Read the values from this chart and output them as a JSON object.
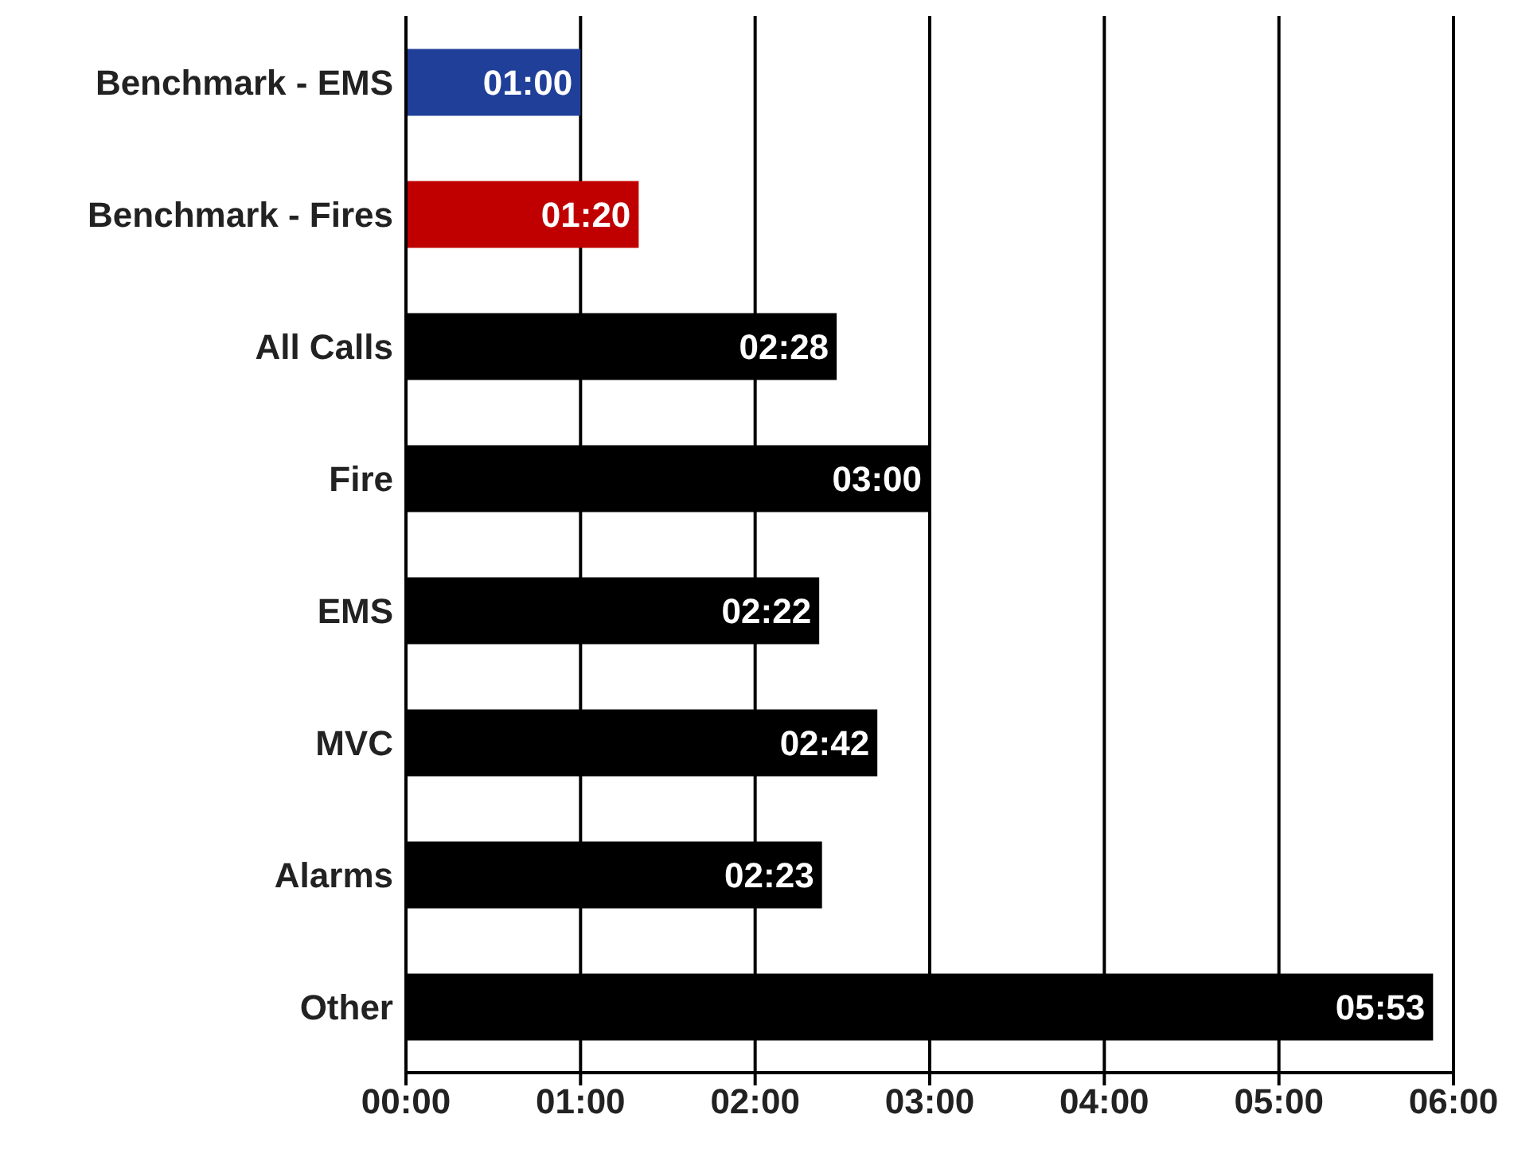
{
  "chart_data": {
    "type": "bar",
    "orientation": "horizontal",
    "categories": [
      "Benchmark - EMS",
      "Benchmark - Fires",
      "All Calls",
      "Fire",
      "EMS",
      "MVC",
      "Alarms",
      "Other"
    ],
    "values": [
      1,
      1.333,
      2.467,
      3,
      2.367,
      2.7,
      2.383,
      5.883
    ],
    "colors": [
      "#1f3f99",
      "#c00000",
      "#000000",
      "#000000",
      "#000000",
      "#000000",
      "#000000",
      "#000000"
    ],
    "value_labels": [
      "01:00",
      "01:20",
      "02:28",
      "03:00",
      "02:22",
      "02:42",
      "02:23",
      "05:53"
    ],
    "xlim": [
      0,
      6
    ],
    "xticks": [
      {
        "value": 0,
        "label": "00:00"
      },
      {
        "value": 1,
        "label": "01:00"
      },
      {
        "value": 2,
        "label": "02:00"
      },
      {
        "value": 3,
        "label": "03:00"
      },
      {
        "value": 4,
        "label": "04:00"
      },
      {
        "value": 5,
        "label": "05:00"
      },
      {
        "value": 6,
        "label": "06:00"
      }
    ],
    "grid": "x"
  }
}
